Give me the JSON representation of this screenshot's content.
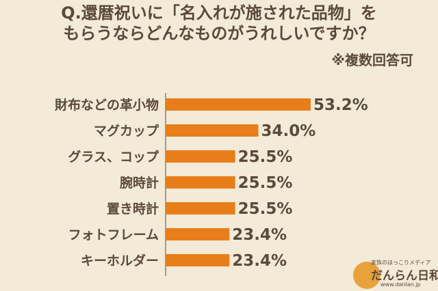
{
  "title_line1": "Q.還暦祝いに「名入れが施された品物」を",
  "title_line2": "もらうならどんなものがうれしいですか？",
  "note": "※複数回答可",
  "colors": {
    "bar": "#e87e1a",
    "background": "#f3ead8",
    "text": "#5b4a36",
    "axis": "#5b4a36"
  },
  "chart_data": {
    "type": "bar",
    "orientation": "horizontal",
    "categories": [
      "財布などの革小物",
      "マグカップ",
      "グラス、コップ",
      "腕時計",
      "置き時計",
      "フォトフレーム",
      "キーホルダー"
    ],
    "values": [
      53.2,
      34.0,
      25.5,
      25.5,
      25.5,
      23.4,
      23.4
    ],
    "value_labels": [
      "53.2%",
      "34.0%",
      "25.5%",
      "25.5%",
      "25.5%",
      "23.4%",
      "23.4%"
    ]
  },
  "logo": {
    "tagline": "家族のほっこりメディア",
    "name": "だんらん日和",
    "url": "www.danlan.jp"
  }
}
